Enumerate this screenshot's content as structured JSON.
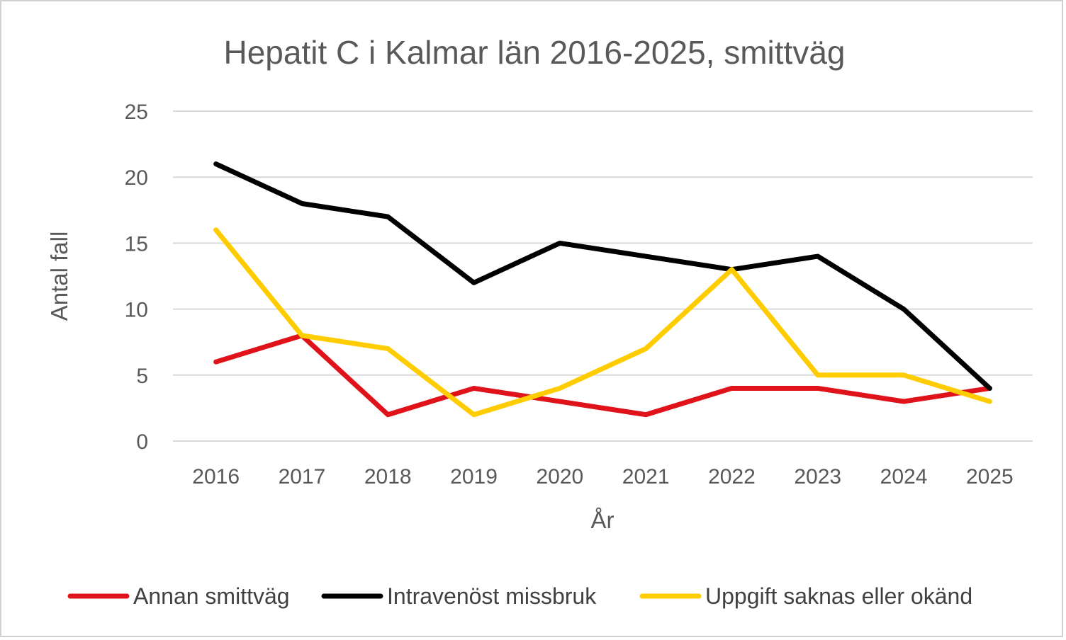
{
  "chart_data": {
    "type": "line",
    "title": "Hepatit C i Kalmar län 2016-2025,  smittväg",
    "xlabel": "År",
    "ylabel": "Antal fall",
    "categories": [
      "2016",
      "2017",
      "2018",
      "2019",
      "2020",
      "2021",
      "2022",
      "2023",
      "2024",
      "2025"
    ],
    "ylim": [
      0,
      25
    ],
    "yticks": [
      0,
      5,
      10,
      15,
      20,
      25
    ],
    "grid": true,
    "legend_position": "bottom",
    "series": [
      {
        "name": "Annan smittväg",
        "color": "#e0131b",
        "values": [
          6,
          8,
          2,
          4,
          3,
          2,
          4,
          4,
          3,
          4
        ]
      },
      {
        "name": "Intravenöst missbruk",
        "color": "#000000",
        "values": [
          21,
          18,
          17,
          12,
          15,
          14,
          13,
          14,
          10,
          4
        ]
      },
      {
        "name": "Uppgift saknas eller okänd",
        "color": "#ffcc00",
        "values": [
          16,
          8,
          7,
          2,
          4,
          7,
          13,
          5,
          5,
          3
        ]
      }
    ]
  }
}
